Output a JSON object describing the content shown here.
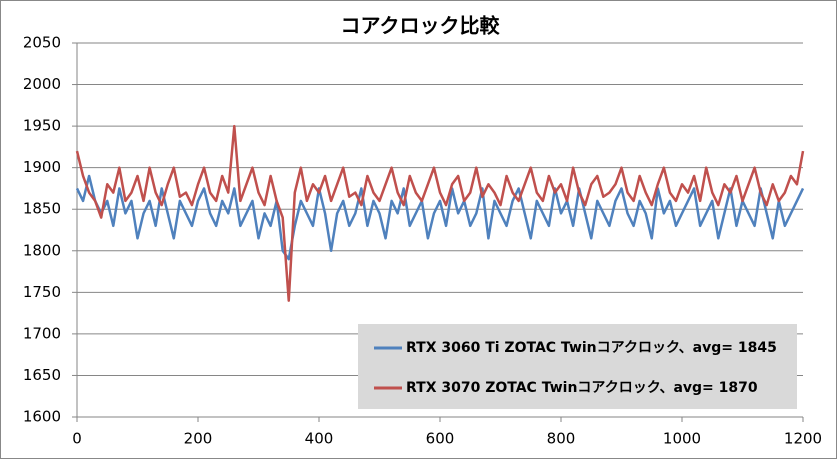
{
  "chart_data": {
    "type": "line",
    "title": "コアクロック比較",
    "x": [
      0,
      10,
      20,
      30,
      40,
      50,
      60,
      70,
      80,
      90,
      100,
      110,
      120,
      130,
      140,
      150,
      160,
      170,
      180,
      190,
      200,
      210,
      220,
      230,
      240,
      250,
      260,
      270,
      280,
      290,
      300,
      310,
      320,
      330,
      340,
      350,
      360,
      370,
      380,
      390,
      400,
      410,
      420,
      430,
      440,
      450,
      460,
      470,
      480,
      490,
      500,
      510,
      520,
      530,
      540,
      550,
      560,
      570,
      580,
      590,
      600,
      610,
      620,
      630,
      640,
      650,
      660,
      670,
      680,
      690,
      700,
      710,
      720,
      730,
      740,
      750,
      760,
      770,
      780,
      790,
      800,
      810,
      820,
      830,
      840,
      850,
      860,
      870,
      880,
      890,
      900,
      910,
      920,
      930,
      940,
      950,
      960,
      970,
      980,
      990,
      1000,
      1010,
      1020,
      1030,
      1040,
      1050,
      1060,
      1070,
      1080,
      1090,
      1100,
      1110,
      1120,
      1130,
      1140,
      1150,
      1160,
      1170,
      1180,
      1190,
      1200
    ],
    "series": [
      {
        "name": "RTX 3060 Ti ZOTAC Twinコアクロック、avg= 1845",
        "color": "#4f81bd",
        "values": [
          1875,
          1860,
          1890,
          1860,
          1845,
          1860,
          1830,
          1875,
          1845,
          1860,
          1815,
          1845,
          1860,
          1830,
          1875,
          1845,
          1815,
          1860,
          1845,
          1830,
          1860,
          1875,
          1845,
          1830,
          1860,
          1845,
          1875,
          1830,
          1845,
          1860,
          1815,
          1845,
          1830,
          1860,
          1800,
          1790,
          1830,
          1860,
          1845,
          1830,
          1875,
          1845,
          1800,
          1845,
          1860,
          1830,
          1845,
          1875,
          1830,
          1860,
          1845,
          1815,
          1860,
          1845,
          1875,
          1830,
          1845,
          1860,
          1815,
          1845,
          1860,
          1830,
          1875,
          1845,
          1860,
          1830,
          1845,
          1875,
          1815,
          1860,
          1845,
          1830,
          1860,
          1875,
          1845,
          1815,
          1860,
          1845,
          1830,
          1875,
          1845,
          1860,
          1830,
          1875,
          1845,
          1815,
          1860,
          1845,
          1830,
          1860,
          1875,
          1845,
          1830,
          1860,
          1845,
          1815,
          1875,
          1845,
          1860,
          1830,
          1845,
          1860,
          1875,
          1830,
          1845,
          1860,
          1815,
          1845,
          1875,
          1830,
          1860,
          1845,
          1830,
          1875,
          1845,
          1815,
          1860,
          1830,
          1845,
          1860,
          1875
        ]
      },
      {
        "name": "RTX 3070 ZOTAC Twinコアクロック、avg= 1870",
        "color": "#c0504d",
        "values": [
          1920,
          1890,
          1870,
          1860,
          1840,
          1880,
          1870,
          1900,
          1860,
          1870,
          1890,
          1860,
          1900,
          1870,
          1855,
          1880,
          1900,
          1865,
          1870,
          1855,
          1880,
          1900,
          1870,
          1860,
          1890,
          1870,
          1950,
          1860,
          1880,
          1900,
          1870,
          1855,
          1890,
          1860,
          1840,
          1740,
          1870,
          1900,
          1860,
          1880,
          1870,
          1890,
          1860,
          1880,
          1900,
          1865,
          1870,
          1855,
          1890,
          1870,
          1860,
          1880,
          1900,
          1870,
          1855,
          1890,
          1870,
          1860,
          1880,
          1900,
          1870,
          1855,
          1880,
          1890,
          1860,
          1870,
          1900,
          1865,
          1880,
          1870,
          1855,
          1890,
          1870,
          1860,
          1880,
          1900,
          1870,
          1860,
          1890,
          1870,
          1880,
          1860,
          1900,
          1870,
          1855,
          1880,
          1890,
          1865,
          1870,
          1880,
          1900,
          1870,
          1860,
          1890,
          1870,
          1855,
          1880,
          1900,
          1870,
          1860,
          1880,
          1870,
          1890,
          1860,
          1900,
          1870,
          1855,
          1880,
          1870,
          1890,
          1860,
          1880,
          1900,
          1870,
          1855,
          1880,
          1860,
          1870,
          1890,
          1880,
          1920
        ]
      }
    ],
    "xlim": [
      0,
      1200
    ],
    "xticks": [
      0,
      200,
      400,
      600,
      800,
      1000,
      1200
    ],
    "ylim": [
      1600,
      2050
    ],
    "yticks": [
      1600,
      1650,
      1700,
      1750,
      1800,
      1850,
      1900,
      1950,
      2000,
      2050
    ],
    "grid": true,
    "legend": "lower right"
  }
}
